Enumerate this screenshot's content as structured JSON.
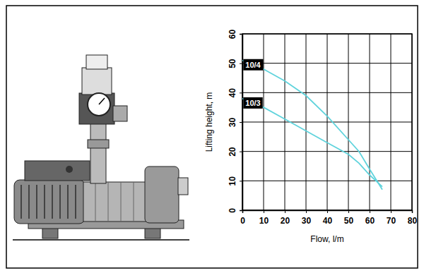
{
  "chart_data": {
    "type": "line",
    "x_label": "Flow, l/m",
    "y_label": "Lifting height, m",
    "x": [
      0,
      10,
      20,
      30,
      40,
      50,
      55,
      60,
      66
    ],
    "series": [
      {
        "name": "10/4",
        "color": "#5fd3dc",
        "values": [
          51,
          48,
          44,
          39,
          32,
          24,
          20,
          14,
          7
        ]
      },
      {
        "name": "10/3",
        "color": "#5fd3dc",
        "values": [
          38,
          35,
          31,
          27,
          23,
          19,
          16,
          12,
          8
        ]
      }
    ],
    "xlim": [
      0,
      80
    ],
    "xticks": [
      0,
      10,
      20,
      30,
      40,
      50,
      60,
      70,
      80
    ],
    "ylim": [
      0,
      60
    ],
    "yticks": [
      0,
      10,
      20,
      30,
      40,
      50,
      60
    ],
    "grid": true
  }
}
